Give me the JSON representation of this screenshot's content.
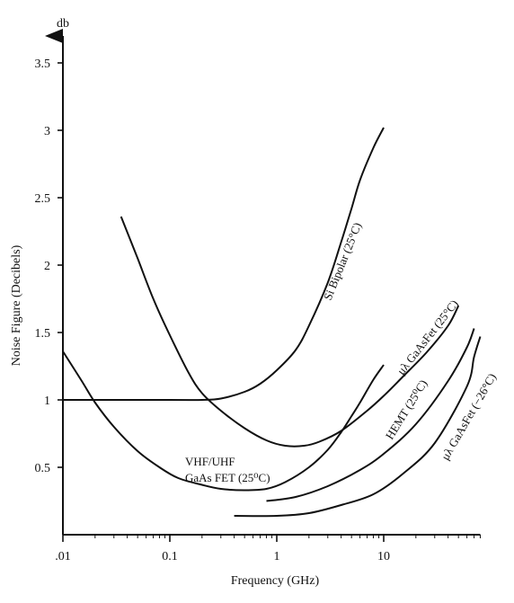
{
  "chart_data": {
    "type": "line",
    "title": "",
    "xlabel": "Frequency (GHz)",
    "ylabel": "Noise Figure (Decibels)",
    "y_unit": "db",
    "x_scale": "log",
    "xlim": [
      0.01,
      80
    ],
    "ylim": [
      0,
      3.5
    ],
    "x_ticks": [
      {
        "value": 0.01,
        "label": ".01"
      },
      {
        "value": 0.1,
        "label": "0.1"
      },
      {
        "value": 1,
        "label": "1"
      },
      {
        "value": 10,
        "label": "10"
      }
    ],
    "y_ticks": [
      {
        "value": 0.5,
        "label": "0.5"
      },
      {
        "value": 1,
        "label": "1"
      },
      {
        "value": 1.5,
        "label": "1.5"
      },
      {
        "value": 2,
        "label": "2"
      },
      {
        "value": 2.5,
        "label": "2.5"
      },
      {
        "value": 3,
        "label": "3"
      },
      {
        "value": 3.5,
        "label": "3.5"
      }
    ],
    "grid": false,
    "series": [
      {
        "name": "Si Bipolar (25°C)",
        "points": [
          [
            0.01,
            1.0
          ],
          [
            0.1,
            1.0
          ],
          [
            0.2,
            1.0
          ],
          [
            0.3,
            1.01
          ],
          [
            0.5,
            1.06
          ],
          [
            0.7,
            1.12
          ],
          [
            1.0,
            1.22
          ],
          [
            1.5,
            1.37
          ],
          [
            2.0,
            1.55
          ],
          [
            3.0,
            1.87
          ],
          [
            4.0,
            2.17
          ],
          [
            5.0,
            2.42
          ],
          [
            6.0,
            2.63
          ],
          [
            8.0,
            2.87
          ],
          [
            10.0,
            3.02
          ]
        ]
      },
      {
        "name": "μλ GaAsFet (25°C)",
        "points": [
          [
            0.035,
            2.36
          ],
          [
            0.05,
            2.05
          ],
          [
            0.07,
            1.75
          ],
          [
            0.1,
            1.48
          ],
          [
            0.15,
            1.2
          ],
          [
            0.2,
            1.05
          ],
          [
            0.3,
            0.92
          ],
          [
            0.5,
            0.79
          ],
          [
            0.8,
            0.7
          ],
          [
            1.2,
            0.66
          ],
          [
            1.8,
            0.66
          ],
          [
            2.5,
            0.69
          ],
          [
            4.0,
            0.77
          ],
          [
            7.0,
            0.92
          ],
          [
            10.0,
            1.03
          ],
          [
            15.0,
            1.17
          ],
          [
            25.0,
            1.35
          ],
          [
            40.0,
            1.55
          ],
          [
            50.0,
            1.7
          ]
        ]
      },
      {
        "name": "VHF/UHF GaAs FET (25°C)",
        "points": [
          [
            0.01,
            1.36
          ],
          [
            0.015,
            1.14
          ],
          [
            0.02,
            0.98
          ],
          [
            0.03,
            0.8
          ],
          [
            0.05,
            0.62
          ],
          [
            0.08,
            0.5
          ],
          [
            0.12,
            0.42
          ],
          [
            0.2,
            0.37
          ],
          [
            0.3,
            0.34
          ],
          [
            0.5,
            0.33
          ],
          [
            0.8,
            0.34
          ],
          [
            1.2,
            0.39
          ],
          [
            2.0,
            0.5
          ],
          [
            3.0,
            0.63
          ],
          [
            4.0,
            0.76
          ],
          [
            5.0,
            0.88
          ],
          [
            6.0,
            0.98
          ],
          [
            8.0,
            1.15
          ],
          [
            10.0,
            1.26
          ]
        ]
      },
      {
        "name": "HEMT (25°C)",
        "points": [
          [
            0.8,
            0.25
          ],
          [
            1.5,
            0.28
          ],
          [
            3.0,
            0.36
          ],
          [
            6.0,
            0.48
          ],
          [
            10.0,
            0.6
          ],
          [
            20.0,
            0.82
          ],
          [
            40.0,
            1.14
          ],
          [
            60.0,
            1.39
          ],
          [
            70.0,
            1.53
          ]
        ]
      },
      {
        "name": "μλ GaAsFet (−26°C)",
        "points": [
          [
            0.4,
            0.14
          ],
          [
            1.0,
            0.14
          ],
          [
            2.0,
            0.16
          ],
          [
            4.0,
            0.22
          ],
          [
            8.0,
            0.3
          ],
          [
            15.0,
            0.45
          ],
          [
            30.0,
            0.68
          ],
          [
            60.0,
            1.1
          ],
          [
            70.0,
            1.32
          ],
          [
            80.0,
            1.47
          ]
        ]
      }
    ],
    "annotations": {
      "si_bipolar": "Si Bipolar (25°C)",
      "ua_gaasfet_25": "μλ GaAsFet (25°C)",
      "vhf_line1": "VHF/UHF",
      "vhf_line2": "GaAs FET (25⁰C)",
      "hemt": "HEMT (25⁰C)",
      "ua_gaasfet_m26": "μλ GaAsFet (−26°C)"
    }
  }
}
